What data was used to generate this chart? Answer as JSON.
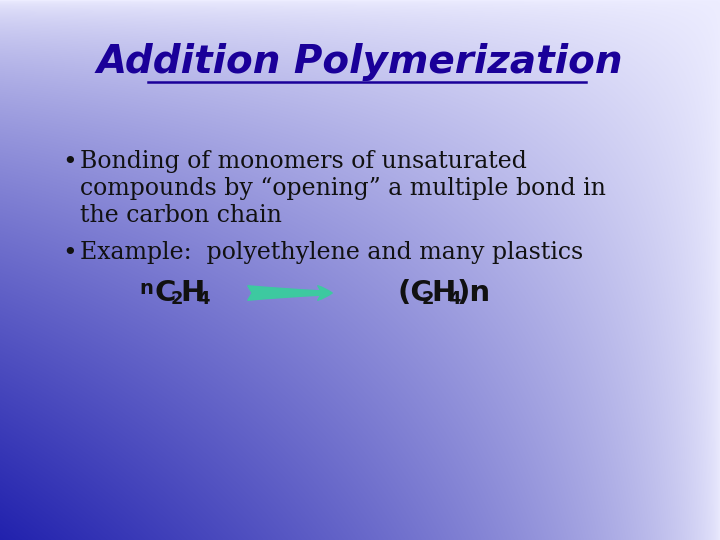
{
  "title": "Addition Polymerization",
  "title_color": "#1a0099",
  "title_fontsize": 28,
  "bullet1_line1": "Bonding of monomers of unsaturated",
  "bullet1_line2": "compounds by “opening” a multiple bond in",
  "bullet1_line3": "the carbon chain",
  "bullet2": "Example:  polyethylene and many plastics",
  "bullet_fontsize": 17,
  "formula_fontsize": 19,
  "arrow_color": "#3dc9a0",
  "text_color": "#111111",
  "bg_light": [
    0.93,
    0.93,
    1.0
  ],
  "bg_dark": [
    0.13,
    0.13,
    0.68
  ]
}
